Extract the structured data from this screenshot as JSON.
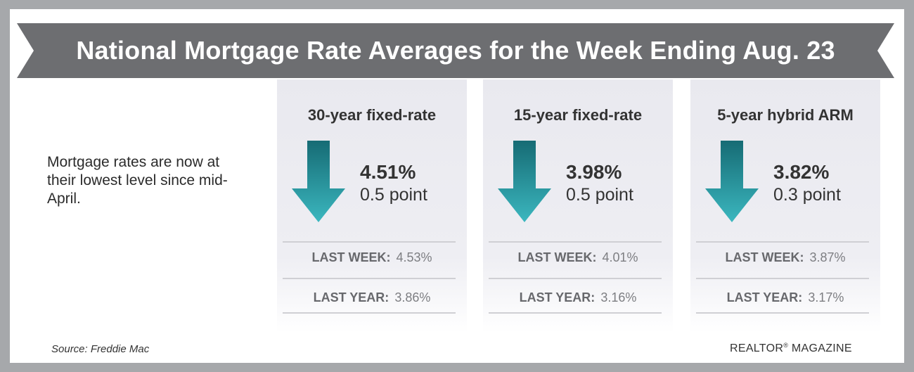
{
  "title": "National Mortgage Rate Averages for the Week Ending Aug. 23",
  "intro": "Mortgage rates are now at their lowest level since mid-April.",
  "source": "Source: Freddie Mac",
  "brand": {
    "name": "REALTOR",
    "mark": "®",
    "suffix": " MAGAZINE"
  },
  "colors": {
    "background": "#a6a8ab",
    "banner": "#6d6e71",
    "arrow_top": "#166b74",
    "arrow_bottom": "#3bb7bf"
  },
  "icons": [
    "down-arrow-icon"
  ],
  "chart_data": {
    "type": "table",
    "row_labels": {
      "last_week": "LAST WEEK:",
      "last_year": "LAST YEAR:"
    },
    "products": [
      {
        "name": "30-year fixed-rate",
        "rate": "4.51%",
        "change": "0.5 point",
        "direction": "down",
        "last_week": "4.53%",
        "last_year": "3.86%"
      },
      {
        "name": "15-year fixed-rate",
        "rate": "3.98%",
        "change": "0.5 point",
        "direction": "down",
        "last_week": "4.01%",
        "last_year": "3.16%"
      },
      {
        "name": "5-year hybrid ARM",
        "rate": "3.82%",
        "change": "0.3 point",
        "direction": "down",
        "last_week": "3.87%",
        "last_year": "3.17%"
      }
    ]
  }
}
